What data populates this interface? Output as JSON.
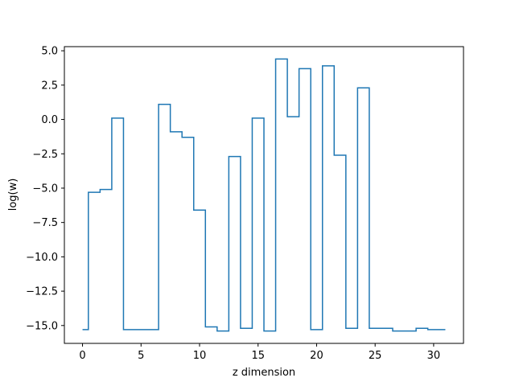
{
  "chart_data": {
    "type": "line",
    "drawstyle": "steps-mid",
    "title": "",
    "xlabel": "z dimension",
    "ylabel": "log(w)",
    "xlim": [
      -1.55,
      32.55
    ],
    "ylim": [
      -16.3,
      5.3
    ],
    "grid": false,
    "legend": "none",
    "color": "#1f77b4",
    "xticks": [
      0,
      5,
      10,
      15,
      20,
      25,
      30
    ],
    "xtick_labels": [
      "0",
      "5",
      "10",
      "15",
      "20",
      "25",
      "30"
    ],
    "yticks": [
      5.0,
      2.5,
      0.0,
      -2.5,
      -5.0,
      -7.5,
      -10.0,
      -12.5,
      -15.0
    ],
    "ytick_labels": [
      "5.0",
      "2.5",
      "0.0",
      "−2.5",
      "−5.0",
      "−7.5",
      "−10.0",
      "−12.5",
      "−15.0"
    ],
    "series": [
      {
        "x": [
          0,
          1,
          2,
          3,
          4,
          5,
          6,
          7,
          8,
          9,
          10,
          11,
          12,
          13,
          14,
          15,
          16,
          17,
          18,
          19,
          20,
          21,
          22,
          23,
          24,
          25,
          26,
          27,
          28,
          29,
          30,
          31
        ],
        "values": [
          -15.3,
          -5.3,
          -5.1,
          0.1,
          -15.3,
          -15.3,
          -15.3,
          1.1,
          -0.9,
          -1.3,
          -6.6,
          -15.1,
          -15.4,
          -2.7,
          -15.2,
          0.1,
          -15.4,
          4.4,
          0.2,
          3.7,
          -15.3,
          3.9,
          -2.6,
          -15.2,
          2.3,
          -15.2,
          -15.2,
          -15.4,
          -15.4,
          -15.2,
          -15.3,
          -15.3
        ]
      }
    ]
  }
}
